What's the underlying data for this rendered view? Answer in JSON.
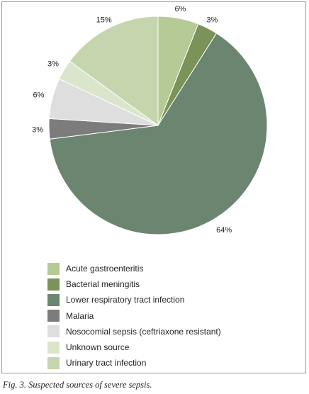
{
  "chart_data": {
    "type": "pie",
    "title": "",
    "slices": [
      {
        "name": "Acute gastroenteritis",
        "value": 6,
        "label": "6%",
        "color": "#b5ca95"
      },
      {
        "name": "Bacterial meningitis",
        "value": 3,
        "label": "3%",
        "color": "#7b9258"
      },
      {
        "name": "Lower respiratory tract infection",
        "value": 64,
        "label": "64%",
        "color": "#6b8571"
      },
      {
        "name": "Malaria",
        "value": 3,
        "label": "3%",
        "color": "#7c7c7c"
      },
      {
        "name": "Nosocomial sepsis (ceftriaxone resistant)",
        "value": 6,
        "label": "6%",
        "color": "#dedede"
      },
      {
        "name": "Unknown source",
        "value": 3,
        "label": "3%",
        "color": "#dae5cc"
      },
      {
        "name": "Urinary tract infection",
        "value": 15,
        "label": "15%",
        "color": "#c5d5ae"
      }
    ],
    "legend_position": "bottom-left"
  },
  "caption": "Fig. 3. Suspected sources of severe sepsis."
}
